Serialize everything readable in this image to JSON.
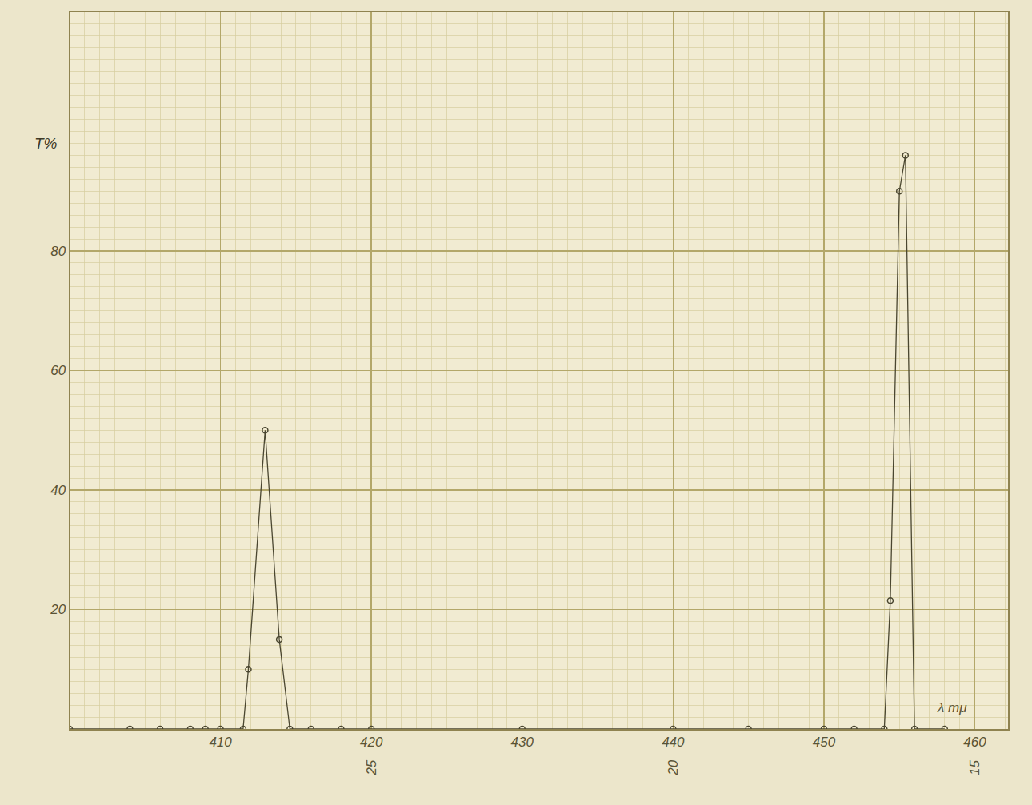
{
  "chart_data": {
    "type": "line",
    "x_label": "λ mμ",
    "y_label": "T%",
    "x": [
      400,
      404,
      406,
      408,
      409,
      410,
      411.5,
      411.85,
      412.96,
      413.9,
      414.6,
      416,
      418,
      420,
      430,
      440,
      445,
      450,
      452,
      454,
      454.4,
      455,
      455.4,
      456,
      458
    ],
    "values": [
      0,
      0,
      0,
      0,
      0,
      0,
      0,
      10,
      50,
      15,
      0,
      0,
      0,
      0,
      0,
      0,
      0,
      0,
      0,
      0,
      21.5,
      90,
      96,
      0,
      0
    ],
    "color": "#4a4630",
    "marker": "circle-open",
    "xlim": [
      400,
      462.2
    ],
    "ylim": [
      0,
      120
    ],
    "xticks": [
      410,
      420,
      430,
      440,
      450,
      460
    ],
    "yticks": [
      20,
      40,
      60,
      80
    ],
    "grid": true,
    "annotations": [
      {
        "x": 420,
        "text": "25"
      },
      {
        "x": 440,
        "text": "20"
      },
      {
        "x": 460,
        "text": "15"
      }
    ]
  }
}
